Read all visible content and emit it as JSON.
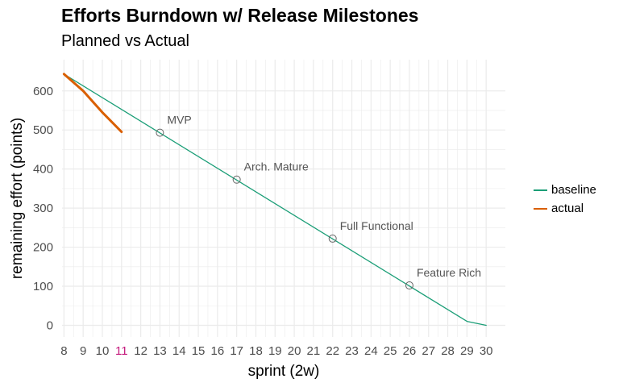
{
  "chart_data": {
    "type": "line",
    "title": "Efforts Burndown w/ Release Milestones",
    "subtitle": "Planned vs Actual",
    "xlabel": "sprint (2w)",
    "ylabel": "remaining effort (points)",
    "xlim": [
      7.9,
      31
    ],
    "ylim": [
      -30,
      680
    ],
    "x_ticks": [
      8,
      9,
      10,
      11,
      12,
      13,
      14,
      15,
      16,
      17,
      18,
      19,
      20,
      21,
      22,
      23,
      24,
      25,
      26,
      27,
      28,
      29,
      30
    ],
    "highlighted_x_tick": 11,
    "y_ticks": [
      0,
      100,
      200,
      300,
      400,
      500,
      600
    ],
    "grid": true,
    "legend_position": "right",
    "series": [
      {
        "name": "baseline",
        "color": "#1b9e77",
        "width": 1.3,
        "x": [
          8,
          29,
          30
        ],
        "y": [
          643,
          10,
          0
        ]
      },
      {
        "name": "actual",
        "color": "#d95f02",
        "width": 3,
        "x": [
          8,
          9,
          10,
          11
        ],
        "y": [
          643,
          600,
          545,
          495
        ]
      }
    ],
    "milestones": [
      {
        "label": "MVP",
        "x": 13,
        "y": 493
      },
      {
        "label": "Arch. Mature",
        "x": 17,
        "y": 373
      },
      {
        "label": "Full Functional",
        "x": 22,
        "y": 222
      },
      {
        "label": "Feature Rich",
        "x": 26,
        "y": 102
      }
    ],
    "colors": {
      "highlight_tick": "#c51b7d",
      "tick_text": "#4d4d4d",
      "grid": "#ebebeb",
      "milestone_marker": "#666666",
      "milestone_text": "#555555"
    }
  }
}
